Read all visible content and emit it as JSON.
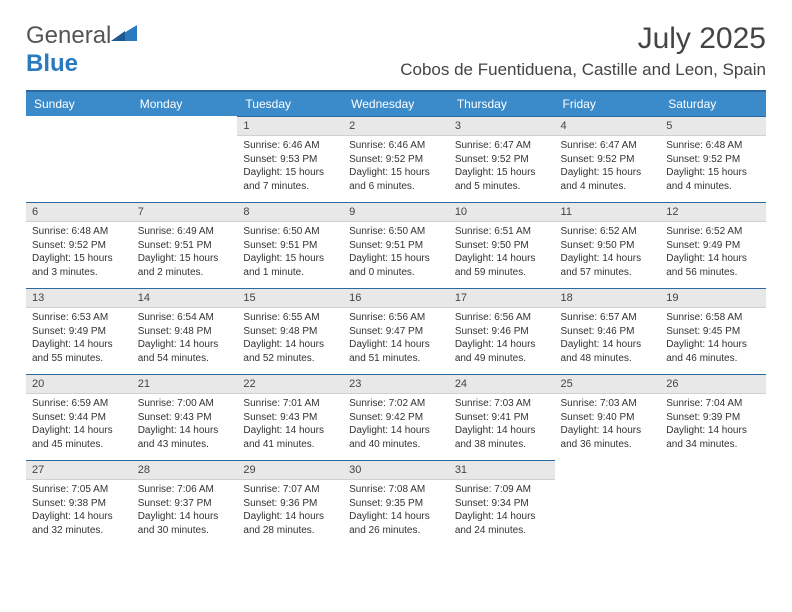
{
  "brand": {
    "part1": "General",
    "part2": "Blue"
  },
  "title": "July 2025",
  "location": "Cobos de Fuentiduena, Castille and Leon, Spain",
  "colors": {
    "header_bg": "#3b8bca",
    "header_border": "#2a6aa0",
    "daynum_bg": "#e8e8e8",
    "text": "#333333",
    "brand_gray": "#555555",
    "brand_blue": "#2a7ac0"
  },
  "dayNames": [
    "Sunday",
    "Monday",
    "Tuesday",
    "Wednesday",
    "Thursday",
    "Friday",
    "Saturday"
  ],
  "firstDayOffset": 2,
  "days": [
    {
      "n": 1,
      "sr": "6:46 AM",
      "ss": "9:53 PM",
      "dl": "15 hours and 7 minutes."
    },
    {
      "n": 2,
      "sr": "6:46 AM",
      "ss": "9:52 PM",
      "dl": "15 hours and 6 minutes."
    },
    {
      "n": 3,
      "sr": "6:47 AM",
      "ss": "9:52 PM",
      "dl": "15 hours and 5 minutes."
    },
    {
      "n": 4,
      "sr": "6:47 AM",
      "ss": "9:52 PM",
      "dl": "15 hours and 4 minutes."
    },
    {
      "n": 5,
      "sr": "6:48 AM",
      "ss": "9:52 PM",
      "dl": "15 hours and 4 minutes."
    },
    {
      "n": 6,
      "sr": "6:48 AM",
      "ss": "9:52 PM",
      "dl": "15 hours and 3 minutes."
    },
    {
      "n": 7,
      "sr": "6:49 AM",
      "ss": "9:51 PM",
      "dl": "15 hours and 2 minutes."
    },
    {
      "n": 8,
      "sr": "6:50 AM",
      "ss": "9:51 PM",
      "dl": "15 hours and 1 minute."
    },
    {
      "n": 9,
      "sr": "6:50 AM",
      "ss": "9:51 PM",
      "dl": "15 hours and 0 minutes."
    },
    {
      "n": 10,
      "sr": "6:51 AM",
      "ss": "9:50 PM",
      "dl": "14 hours and 59 minutes."
    },
    {
      "n": 11,
      "sr": "6:52 AM",
      "ss": "9:50 PM",
      "dl": "14 hours and 57 minutes."
    },
    {
      "n": 12,
      "sr": "6:52 AM",
      "ss": "9:49 PM",
      "dl": "14 hours and 56 minutes."
    },
    {
      "n": 13,
      "sr": "6:53 AM",
      "ss": "9:49 PM",
      "dl": "14 hours and 55 minutes."
    },
    {
      "n": 14,
      "sr": "6:54 AM",
      "ss": "9:48 PM",
      "dl": "14 hours and 54 minutes."
    },
    {
      "n": 15,
      "sr": "6:55 AM",
      "ss": "9:48 PM",
      "dl": "14 hours and 52 minutes."
    },
    {
      "n": 16,
      "sr": "6:56 AM",
      "ss": "9:47 PM",
      "dl": "14 hours and 51 minutes."
    },
    {
      "n": 17,
      "sr": "6:56 AM",
      "ss": "9:46 PM",
      "dl": "14 hours and 49 minutes."
    },
    {
      "n": 18,
      "sr": "6:57 AM",
      "ss": "9:46 PM",
      "dl": "14 hours and 48 minutes."
    },
    {
      "n": 19,
      "sr": "6:58 AM",
      "ss": "9:45 PM",
      "dl": "14 hours and 46 minutes."
    },
    {
      "n": 20,
      "sr": "6:59 AM",
      "ss": "9:44 PM",
      "dl": "14 hours and 45 minutes."
    },
    {
      "n": 21,
      "sr": "7:00 AM",
      "ss": "9:43 PM",
      "dl": "14 hours and 43 minutes."
    },
    {
      "n": 22,
      "sr": "7:01 AM",
      "ss": "9:43 PM",
      "dl": "14 hours and 41 minutes."
    },
    {
      "n": 23,
      "sr": "7:02 AM",
      "ss": "9:42 PM",
      "dl": "14 hours and 40 minutes."
    },
    {
      "n": 24,
      "sr": "7:03 AM",
      "ss": "9:41 PM",
      "dl": "14 hours and 38 minutes."
    },
    {
      "n": 25,
      "sr": "7:03 AM",
      "ss": "9:40 PM",
      "dl": "14 hours and 36 minutes."
    },
    {
      "n": 26,
      "sr": "7:04 AM",
      "ss": "9:39 PM",
      "dl": "14 hours and 34 minutes."
    },
    {
      "n": 27,
      "sr": "7:05 AM",
      "ss": "9:38 PM",
      "dl": "14 hours and 32 minutes."
    },
    {
      "n": 28,
      "sr": "7:06 AM",
      "ss": "9:37 PM",
      "dl": "14 hours and 30 minutes."
    },
    {
      "n": 29,
      "sr": "7:07 AM",
      "ss": "9:36 PM",
      "dl": "14 hours and 28 minutes."
    },
    {
      "n": 30,
      "sr": "7:08 AM",
      "ss": "9:35 PM",
      "dl": "14 hours and 26 minutes."
    },
    {
      "n": 31,
      "sr": "7:09 AM",
      "ss": "9:34 PM",
      "dl": "14 hours and 24 minutes."
    }
  ],
  "labels": {
    "sunrise": "Sunrise:",
    "sunset": "Sunset:",
    "daylight": "Daylight:"
  }
}
